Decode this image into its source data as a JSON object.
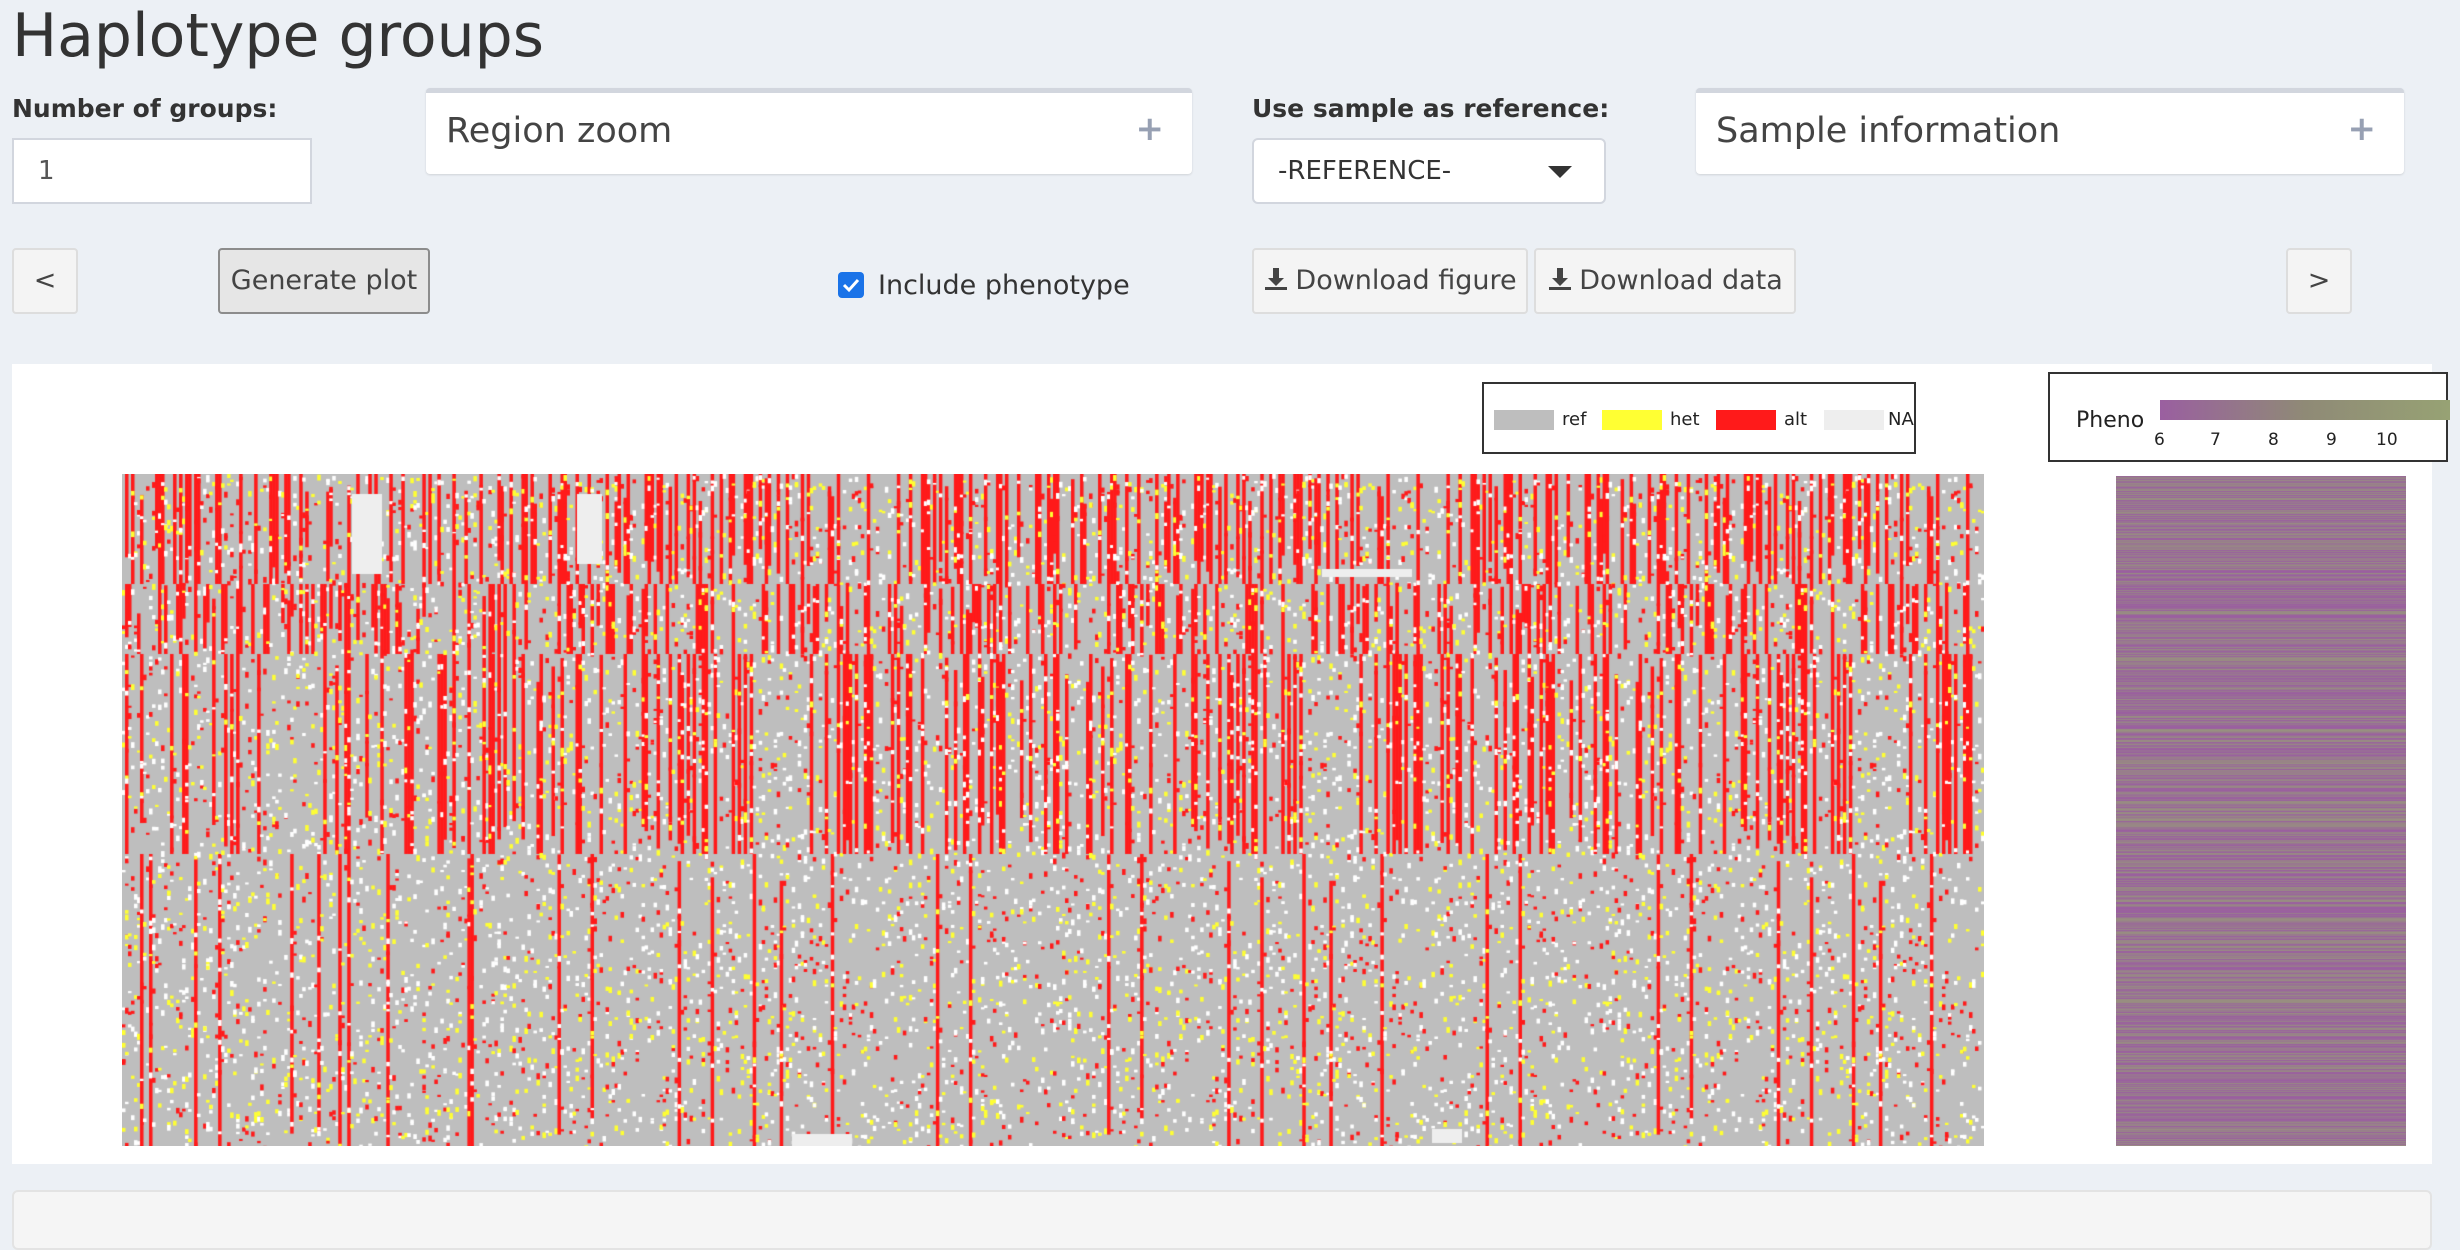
{
  "page": {
    "title": "Haplotype groups"
  },
  "controls": {
    "num_groups_label": "Number of groups:",
    "num_groups_value": "1",
    "region_zoom_title": "Region zoom",
    "ref_label": "Use sample as reference:",
    "ref_value": "-REFERENCE-",
    "sample_info_title": "Sample information",
    "prev_label": "<",
    "next_label": ">",
    "generate_label": "Generate plot",
    "include_pheno_label": "Include phenotype",
    "include_pheno_checked": true,
    "download_figure_label": "Download figure",
    "download_data_label": "Download data",
    "plus": "+"
  },
  "legend": {
    "items": [
      {
        "label": "ref",
        "color": "#bebebe"
      },
      {
        "label": "het",
        "color": "#ffff33"
      },
      {
        "label": "alt",
        "color": "#ff1a1a"
      },
      {
        "label": "NA",
        "color": "#eeeeee"
      }
    ]
  },
  "pheno_legend": {
    "title": "Pheno",
    "ticks": [
      "6",
      "7",
      "8",
      "9",
      "10"
    ],
    "colors": [
      "#9a5fa0",
      "#97a274"
    ]
  },
  "colors": {
    "ref": "#bebebe",
    "het": "#ffff33",
    "alt": "#ff1a1a",
    "na": "#eeeeee"
  }
}
